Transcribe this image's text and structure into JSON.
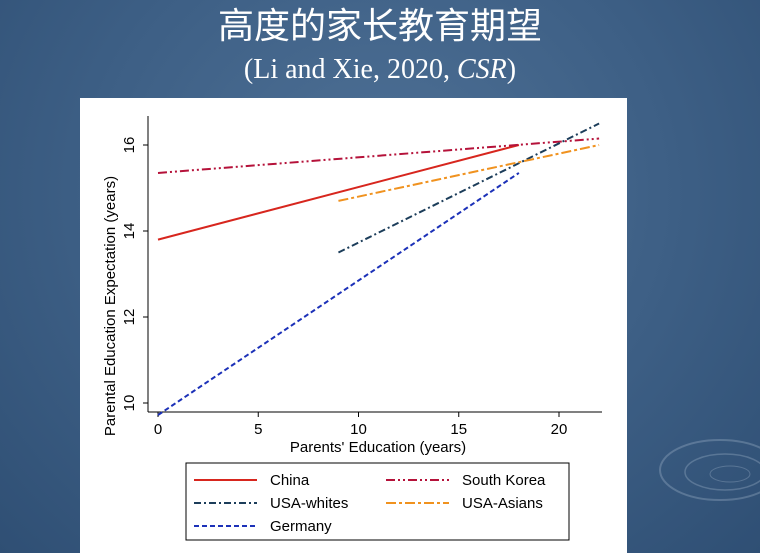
{
  "slide": {
    "title": "高度的家长教育期望",
    "subtitle_main": "(Li and Xie, 2020, ",
    "subtitle_journal": "CSR",
    "subtitle_end": ")"
  },
  "chart_data": {
    "type": "line",
    "xlabel": "Parents' Education (years)",
    "ylabel": "Parental Education Expectation (years)",
    "xlim": [
      0,
      22.5
    ],
    "ylim": [
      9.7,
      16.7
    ],
    "xticks": [
      0,
      5,
      10,
      15,
      20
    ],
    "yticks": [
      10,
      12,
      14,
      16
    ],
    "grid": false,
    "legend_position": "bottom",
    "series": [
      {
        "name": "China",
        "color": "#d7261e",
        "dash": "solid",
        "x": [
          0,
          18
        ],
        "y": [
          13.8,
          16.0
        ]
      },
      {
        "name": "South Korea",
        "color": "#b5123a",
        "dash": "dash-dot-dot",
        "x": [
          0,
          22
        ],
        "y": [
          15.35,
          16.15
        ]
      },
      {
        "name": "USA-whites",
        "color": "#1c3d5a",
        "dash": "dash-dot",
        "x": [
          9,
          22
        ],
        "y": [
          13.5,
          16.5
        ]
      },
      {
        "name": "USA-Asians",
        "color": "#f0921f",
        "dash": "long-dash-dot",
        "x": [
          9,
          22
        ],
        "y": [
          14.7,
          16.0
        ]
      },
      {
        "name": "Germany",
        "color": "#1c31b8",
        "dash": "dashed",
        "x": [
          0,
          18
        ],
        "y": [
          9.72,
          15.35
        ]
      }
    ]
  }
}
